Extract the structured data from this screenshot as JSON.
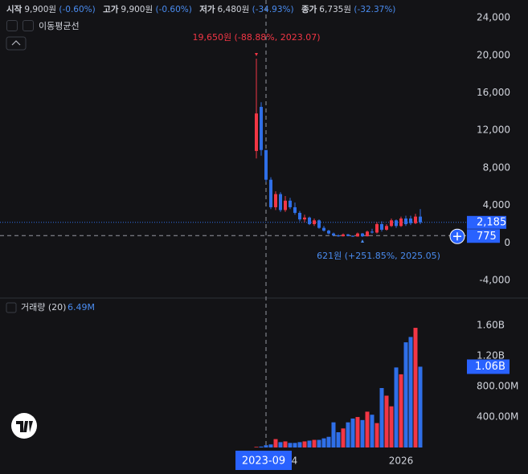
{
  "header": {
    "items": [
      {
        "label": "시작",
        "value": "9,900원",
        "change": "(-0.60%)"
      },
      {
        "label": "고가",
        "value": "9,900원",
        "change": "(-0.60%)"
      },
      {
        "label": "저가",
        "value": "6,480원",
        "change": "(-34.93%)"
      },
      {
        "label": "종가",
        "value": "6,735원",
        "change": "(-32.37%)"
      }
    ],
    "indicator": "이동평균선"
  },
  "chart_data": [
    {
      "type": "candlestick",
      "x": [
        "2023-07",
        "2023-08",
        "2023-09",
        "2023-10",
        "2023-11",
        "2023-12",
        "2024-01",
        "2024-02",
        "2024-03",
        "2024-04",
        "2024-05",
        "2024-06",
        "2024-07",
        "2024-08",
        "2024-09",
        "2024-10",
        "2024-11",
        "2024-12",
        "2025-01",
        "2025-02",
        "2025-03",
        "2025-04",
        "2025-05",
        "2025-06",
        "2025-07",
        "2025-08",
        "2025-09",
        "2025-10",
        "2025-11",
        "2025-12",
        "2026-01",
        "2026-02",
        "2026-03",
        "2026-04",
        "2026-05"
      ],
      "open": [
        9800,
        14500,
        9900,
        6735,
        3800,
        5200,
        3500,
        4500,
        3800,
        3200,
        2500,
        2700,
        2000,
        2400,
        1600,
        1300,
        1000,
        800,
        700,
        900,
        750,
        680,
        1000,
        700,
        1200,
        1100,
        2000,
        1400,
        1800,
        2400,
        1800,
        2600,
        2600,
        2100,
        2800
      ],
      "high": [
        19650,
        15000,
        9900,
        7000,
        5500,
        5400,
        5000,
        4800,
        4300,
        3400,
        3000,
        2800,
        2600,
        2500,
        1800,
        1400,
        1100,
        900,
        1000,
        950,
        800,
        1100,
        1050,
        1300,
        1500,
        2200,
        2300,
        2000,
        2600,
        2500,
        2800,
        2900,
        2900,
        3100,
        3600
      ],
      "low": [
        9000,
        9300,
        6480,
        3600,
        3500,
        3300,
        3300,
        3600,
        3000,
        2300,
        2200,
        1900,
        1800,
        1500,
        1200,
        900,
        700,
        650,
        680,
        700,
        640,
        660,
        621,
        680,
        1000,
        1000,
        1200,
        1300,
        1700,
        1600,
        1700,
        1800,
        1900,
        2000,
        2000
      ],
      "close": [
        13800,
        9900,
        6735,
        3800,
        5200,
        3500,
        4500,
        3800,
        3200,
        2500,
        2700,
        2000,
        2400,
        1600,
        1300,
        1000,
        800,
        700,
        900,
        750,
        680,
        1000,
        700,
        1200,
        1100,
        2000,
        1400,
        1800,
        2400,
        1800,
        2600,
        2000,
        2100,
        2800,
        2185
      ],
      "up_color": "#f23645",
      "down_color": "#2f6fe8",
      "ylim": [
        -5800,
        25900
      ],
      "yticks": [
        {
          "value": 24000,
          "label": "24,000"
        },
        {
          "value": 20000,
          "label": "20,000"
        },
        {
          "value": 16000,
          "label": "16,000"
        },
        {
          "value": 12000,
          "label": "12,000"
        },
        {
          "value": 8000,
          "label": "8,000"
        },
        {
          "value": 4000,
          "label": "4,000"
        },
        0,
        {
          "value": -4000,
          "label": "-4,000"
        }
      ],
      "annotations": [
        {
          "x": "2023-07",
          "value": 19650,
          "text": "19,650원 (-88.88%, 2023.07)",
          "color": "#f23645"
        },
        {
          "x": "2025-05",
          "value": 621,
          "text": "621원 (+251.85%, 2025.05)",
          "color": "#4a8cf0"
        }
      ],
      "last_price": {
        "value": 2185,
        "label": "2,185"
      },
      "crosshair": {
        "x": "2023-09",
        "price": 775
      }
    },
    {
      "type": "bar",
      "title": "거래량 (20)",
      "subtitle": "6.49M",
      "values": [
        8000000,
        12000000,
        30000000,
        40000000,
        110000000,
        70000000,
        80000000,
        60000000,
        60000000,
        70000000,
        80000000,
        90000000,
        100000000,
        100000000,
        120000000,
        140000000,
        330000000,
        200000000,
        250000000,
        330000000,
        380000000,
        400000000,
        360000000,
        470000000,
        430000000,
        320000000,
        780000000,
        680000000,
        540000000,
        1050000000,
        960000000,
        1380000000,
        1450000000,
        1570000000,
        1060000000
      ],
      "ylim": [
        0,
        1950000000
      ],
      "yticks": [
        {
          "value": 1600000000,
          "label": "1.60B"
        },
        {
          "value": 1200000000,
          "label": "1.20B"
        },
        {
          "value": 800000000,
          "label": "800.00M"
        },
        {
          "value": 400000000,
          "label": "400.00M"
        }
      ],
      "xticks": [
        {
          "value": "2024-01",
          "label": "2024"
        },
        {
          "value": "2026-01",
          "label": "2026"
        }
      ],
      "last_value": {
        "value": 1060000000,
        "label": "1.06B"
      }
    }
  ]
}
